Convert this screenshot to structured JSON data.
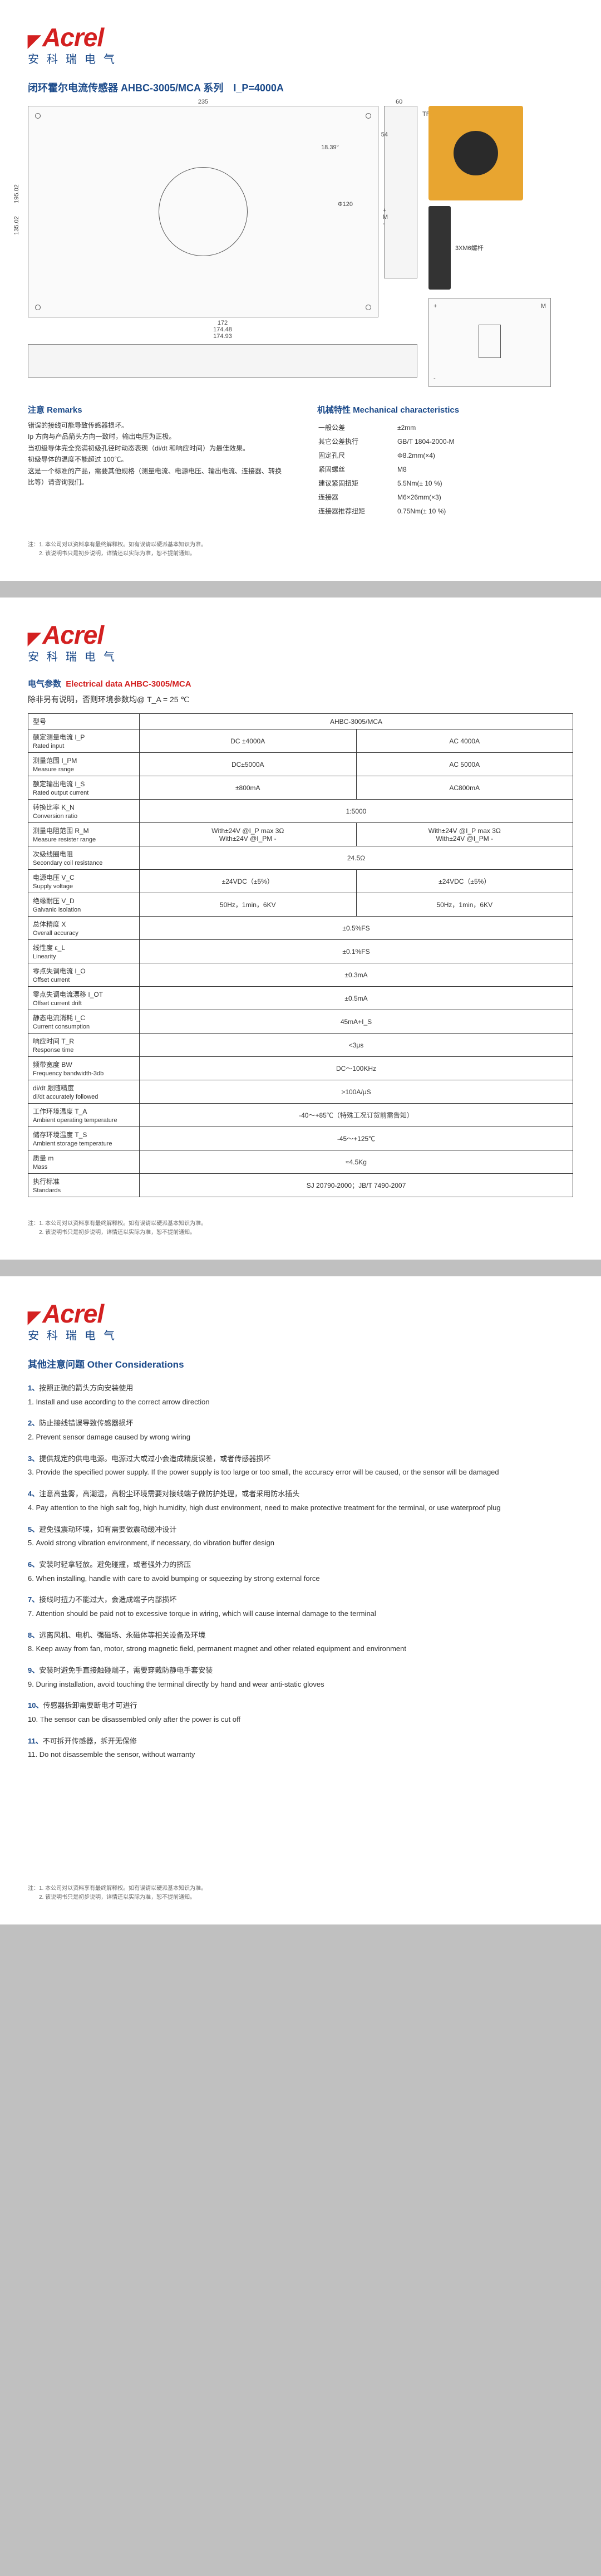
{
  "brand": {
    "main": "Acrel",
    "sub": "安科瑞电气"
  },
  "page1": {
    "title": "闭环霍尔电流传感器 AHBC-3005/MCA 系列　I_P=4000A",
    "remarks_head": "注意 Remarks",
    "remarks_body": "错误的接线可能导致传感器损坏。\nIp 方向与产品箭头方向一致时，输出电压为正极。\n当初级导体完全充满初级孔径时动态表现（di/dt 和响应时间）为最佳效果。\n初级导体的温度不能超过 100℃。\n这是一个标准的产品，需要其他规格（测量电流、电源电压、输出电流、连接器、转换比等）请咨询我们。",
    "mech_head": "机械特性 Mechanical characteristics",
    "mech": [
      [
        "一般公差",
        "±2mm"
      ],
      [
        "其它公差执行",
        "GB/T 1804-2000-M"
      ],
      [
        "固定孔尺",
        "Φ8.2mm(×4)"
      ],
      [
        "紧固螺丝",
        "M8"
      ],
      [
        "建议紧固扭矩",
        "5.5Nm(± 10 %)"
      ],
      [
        "连接器",
        "M6×26mm(×3)"
      ],
      [
        "连接器推荐扭矩",
        "0.75Nm(± 10 %)"
      ]
    ],
    "dims": {
      "w": "235",
      "h": "195.02",
      "h2": "135.02",
      "w2": "172",
      "w3": "174.48",
      "w4": "174.93",
      "side": "60",
      "tp": "TP",
      "d": "Φ120",
      "ang": "18.39°",
      "r": "54"
    },
    "footnote": "注：1. 本公司对以资料享有最终解释权。如有误请以硬派基本知识为准。\n　　2. 该说明书只是初步说明，详情还以实际为准，恕不提前通知。"
  },
  "page2": {
    "title_cn": "电气参数",
    "title_en": "Electrical data AHBC-3005/MCA",
    "note": "除非另有说明，否则环境参数均@ T_A = 25 ℃",
    "model_label": "型号",
    "model_val": "AHBC-3005/MCA",
    "rows": [
      {
        "l": "额定测量电流 I_P",
        "l2": "Rated input",
        "c1": "DC ±4000A",
        "c2": "AC 4000A"
      },
      {
        "l": "测量范围 I_PM",
        "l2": "Measure range",
        "c1": "DC±5000A",
        "c2": "AC 5000A"
      },
      {
        "l": "额定输出电流 I_S",
        "l2": "Rated output current",
        "c1": "±800mA",
        "c2": "AC800mA"
      },
      {
        "l": "转换比率 K_N",
        "l2": "Conversion ratio",
        "c": "1:5000"
      },
      {
        "l": "测量电阻范围 R_M",
        "l2": "Measure resister range",
        "c1": "With±24V @I_P  max 3Ω\nWith±24V @I_PM -",
        "c2": "With±24V @I_P  max 3Ω\nWith±24V @I_PM -"
      },
      {
        "l": "次级线圈电阻",
        "l2": "Secondary coil resistance",
        "c": "24.5Ω"
      },
      {
        "l": "电源电压 V_C",
        "l2": "Supply voltage",
        "c1": "±24VDC（±5%）",
        "c2": "±24VDC（±5%）"
      },
      {
        "l": "绝缘耐压 V_D",
        "l2": "Galvanic isolation",
        "c1": "50Hz，1min，6KV",
        "c2": "50Hz，1min，6KV"
      },
      {
        "l": "总体精度 X",
        "l2": "Overall accuracy",
        "c": "±0.5%FS"
      },
      {
        "l": "线性度 ε_L",
        "l2": "Linearity",
        "c": "±0.1%FS"
      },
      {
        "l": "零点失调电流 I_O",
        "l2": "Offset current",
        "c": "±0.3mA"
      },
      {
        "l": "零点失调电流漂移 I_OT",
        "l2": "Offset current drift",
        "c": "±0.5mA"
      },
      {
        "l": "静态电流消耗 I_C",
        "l2": "Current consumption",
        "c": "45mA+I_S"
      },
      {
        "l": "响应时间 T_R",
        "l2": "Response time",
        "c": "<3μs"
      },
      {
        "l": "频带宽度 BW",
        "l2": "Frequency bandwidth-3db",
        "c": "DC～100KHz"
      },
      {
        "l": "di/dt 跟随精度",
        "l2": "di/dt accurately followed",
        "c": ">100A/μS"
      },
      {
        "l": "工作环境温度 T_A",
        "l2": "Ambient operating temperature",
        "c": "-40～+85℃（特殊工况订货前需告知）"
      },
      {
        "l": "储存环境温度 T_S",
        "l2": "Ambient storage temperature",
        "c": "-45～+125℃"
      },
      {
        "l": "质量 m",
        "l2": "Mass",
        "c": "≈4.5Kg"
      },
      {
        "l": "执行标准",
        "l2": "Standards",
        "c": "SJ 20790-2000；JB/T 7490-2007"
      }
    ],
    "footnote": "注：1. 本公司对以资料享有最终解释权。如有误请以硬派基本知识为准。\n　　2. 该说明书只是初步说明，详情还以实际为准，恕不提前通知。"
  },
  "page3": {
    "title": "其他注意问题 Other Considerations",
    "items": [
      {
        "n": "1",
        "cn": "按照正确的箭头方向安装使用",
        "en": "1. Install and use according to the correct arrow direction"
      },
      {
        "n": "2",
        "cn": "防止接线错误导致传感器损坏",
        "en": "2. Prevent sensor damage caused by wrong wiring"
      },
      {
        "n": "3",
        "cn": "提供规定的供电电源。电源过大或过小会造成精度误差，或者传感器损坏",
        "en": "3. Provide the specified power supply. If the power supply is too large or too small, the accuracy error will be caused, or the sensor will be damaged"
      },
      {
        "n": "4",
        "cn": "注意高盐雾，高潮湿，高粉尘环境需要对接线端子做防护处理，或者采用防水插头",
        "en": "4. Pay attention to the high salt fog, high humidity, high dust environment, need to make protective treatment for the terminal, or use waterproof plug"
      },
      {
        "n": "5",
        "cn": "避免强震动环境，如有需要做震动缓冲设计",
        "en": "5. Avoid strong vibration environment, if necessary, do vibration buffer design"
      },
      {
        "n": "6",
        "cn": "安装时轻拿轻放。避免碰撞，或者强外力的挤压",
        "en": "6. When installing, handle with care to avoid bumping or squeezing by strong external force"
      },
      {
        "n": "7",
        "cn": "接线时扭力不能过大，会造成端子内部损坏",
        "en": "7. Attention should be paid not to excessive torque in wiring, which will cause internal damage to the terminal"
      },
      {
        "n": "8",
        "cn": "远离风机、电机、强磁场、永磁体等相关设备及环境",
        "en": "8. Keep away from fan, motor, strong magnetic field, permanent magnet and other related equipment and environment"
      },
      {
        "n": "9",
        "cn": "安装时避免手直接触碰端子，需要穿戴防静电手套安装",
        "en": "9. During installation, avoid touching the terminal directly by hand and wear anti-static gloves"
      },
      {
        "n": "10",
        "cn": "传感器拆卸需要断电才可进行",
        "en": "10. The sensor can be disassembled only after the power is cut off"
      },
      {
        "n": "11",
        "cn": "不可拆开传感器，拆开无保修",
        "en": "11. Do not disassemble the sensor, without warranty"
      }
    ],
    "footnote": "注：1. 本公司对以资料享有最终解释权。如有误请以硬派基本知识为准。\n　　2. 该说明书只是初步说明，详情还以实际为准，恕不提前通知。"
  }
}
